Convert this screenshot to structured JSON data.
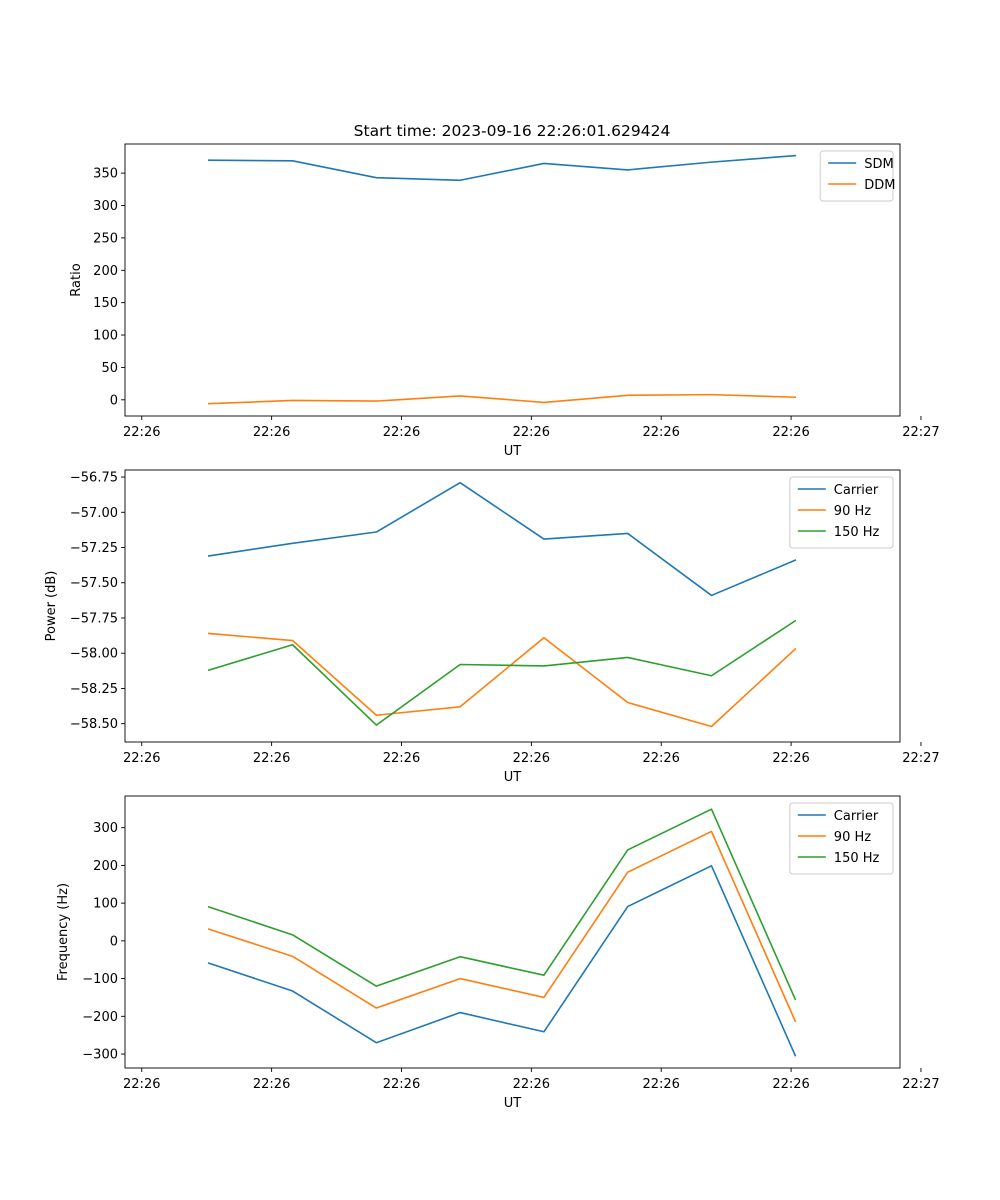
{
  "figure_title": "Start time: 2023-09-16 22:26:01.629424",
  "colors": {
    "blue": "#1f77b4",
    "orange": "#ff7f0e",
    "green": "#2ca02c"
  },
  "chart_data": [
    {
      "type": "line",
      "title": "Start time: 2023-09-16 22:26:01.629424",
      "xlabel": "UT",
      "ylabel": "Ratio",
      "ylim": [
        -25,
        395
      ],
      "yticks": [
        0,
        50,
        100,
        150,
        200,
        250,
        300,
        350
      ],
      "ytick_labels": [
        "0",
        "50",
        "100",
        "150",
        "200",
        "250",
        "300",
        "350"
      ],
      "xlim": [
        0,
        9.25
      ],
      "xticks": [
        0.2,
        1.75,
        3.3,
        4.85,
        6.4,
        7.95,
        9.5
      ],
      "xtick_labels": [
        "22:26",
        "22:26",
        "22:26",
        "22:26",
        "22:26",
        "22:26",
        "22:27"
      ],
      "x": [
        1,
        2,
        3,
        4,
        5,
        6,
        7,
        8
      ],
      "legend_position": "upper right",
      "series": [
        {
          "name": "SDM",
          "color": "#1f77b4",
          "values": [
            370,
            369,
            343,
            339,
            365,
            355,
            367,
            377
          ]
        },
        {
          "name": "DDM",
          "color": "#ff7f0e",
          "values": [
            -6,
            -1,
            -2,
            6,
            -4,
            7,
            8,
            4
          ]
        }
      ]
    },
    {
      "type": "line",
      "title": "",
      "xlabel": "UT",
      "ylabel": "Power (dB)",
      "ylim": [
        -58.63,
        -56.7
      ],
      "yticks": [
        -58.5,
        -58.25,
        -58.0,
        -57.75,
        -57.5,
        -57.25,
        -57.0,
        -56.75
      ],
      "ytick_labels": [
        "−58.50",
        "−58.25",
        "−58.00",
        "−57.75",
        "−57.50",
        "−57.25",
        "−57.00",
        "−56.75"
      ],
      "xlim": [
        0,
        9.25
      ],
      "xticks": [
        0.2,
        1.75,
        3.3,
        4.85,
        6.4,
        7.95,
        9.5
      ],
      "xtick_labels": [
        "22:26",
        "22:26",
        "22:26",
        "22:26",
        "22:26",
        "22:26",
        "22:27"
      ],
      "x": [
        1,
        2,
        3,
        4,
        5,
        6,
        7,
        8
      ],
      "legend_position": "upper right",
      "series": [
        {
          "name": "Carrier",
          "color": "#1f77b4",
          "values": [
            -57.31,
            -57.22,
            -57.14,
            -56.79,
            -57.19,
            -57.15,
            -57.59,
            -57.34
          ]
        },
        {
          "name": "90 Hz",
          "color": "#ff7f0e",
          "values": [
            -57.86,
            -57.91,
            -58.44,
            -58.38,
            -57.89,
            -58.35,
            -58.52,
            -57.97
          ]
        },
        {
          "name": "150 Hz",
          "color": "#2ca02c",
          "values": [
            -58.12,
            -57.94,
            -58.51,
            -58.08,
            -58.09,
            -58.03,
            -58.16,
            -57.77
          ]
        }
      ]
    },
    {
      "type": "line",
      "title": "",
      "xlabel": "UT",
      "ylabel": "Frequency (Hz)",
      "ylim": [
        -337,
        384
      ],
      "yticks": [
        -300,
        -200,
        -100,
        0,
        100,
        200,
        300
      ],
      "ytick_labels": [
        "−300",
        "−200",
        "−100",
        "0",
        "100",
        "200",
        "300"
      ],
      "xlim": [
        0,
        9.25
      ],
      "xticks": [
        0.2,
        1.75,
        3.3,
        4.85,
        6.4,
        7.95,
        9.5
      ],
      "xtick_labels": [
        "22:26",
        "22:26",
        "22:26",
        "22:26",
        "22:26",
        "22:26",
        "22:27"
      ],
      "x": [
        1,
        2,
        3,
        4,
        5,
        6,
        7,
        8
      ],
      "legend_position": "upper right",
      "series": [
        {
          "name": "Carrier",
          "color": "#1f77b4",
          "values": [
            -59,
            -133,
            -270,
            -190,
            -241,
            91,
            199,
            -304
          ]
        },
        {
          "name": "90 Hz",
          "color": "#ff7f0e",
          "values": [
            31,
            -41,
            -178,
            -100,
            -150,
            182,
            290,
            -213
          ]
        },
        {
          "name": "150 Hz",
          "color": "#2ca02c",
          "values": [
            90,
            16,
            -120,
            -42,
            -91,
            241,
            349,
            -155
          ]
        }
      ]
    }
  ]
}
